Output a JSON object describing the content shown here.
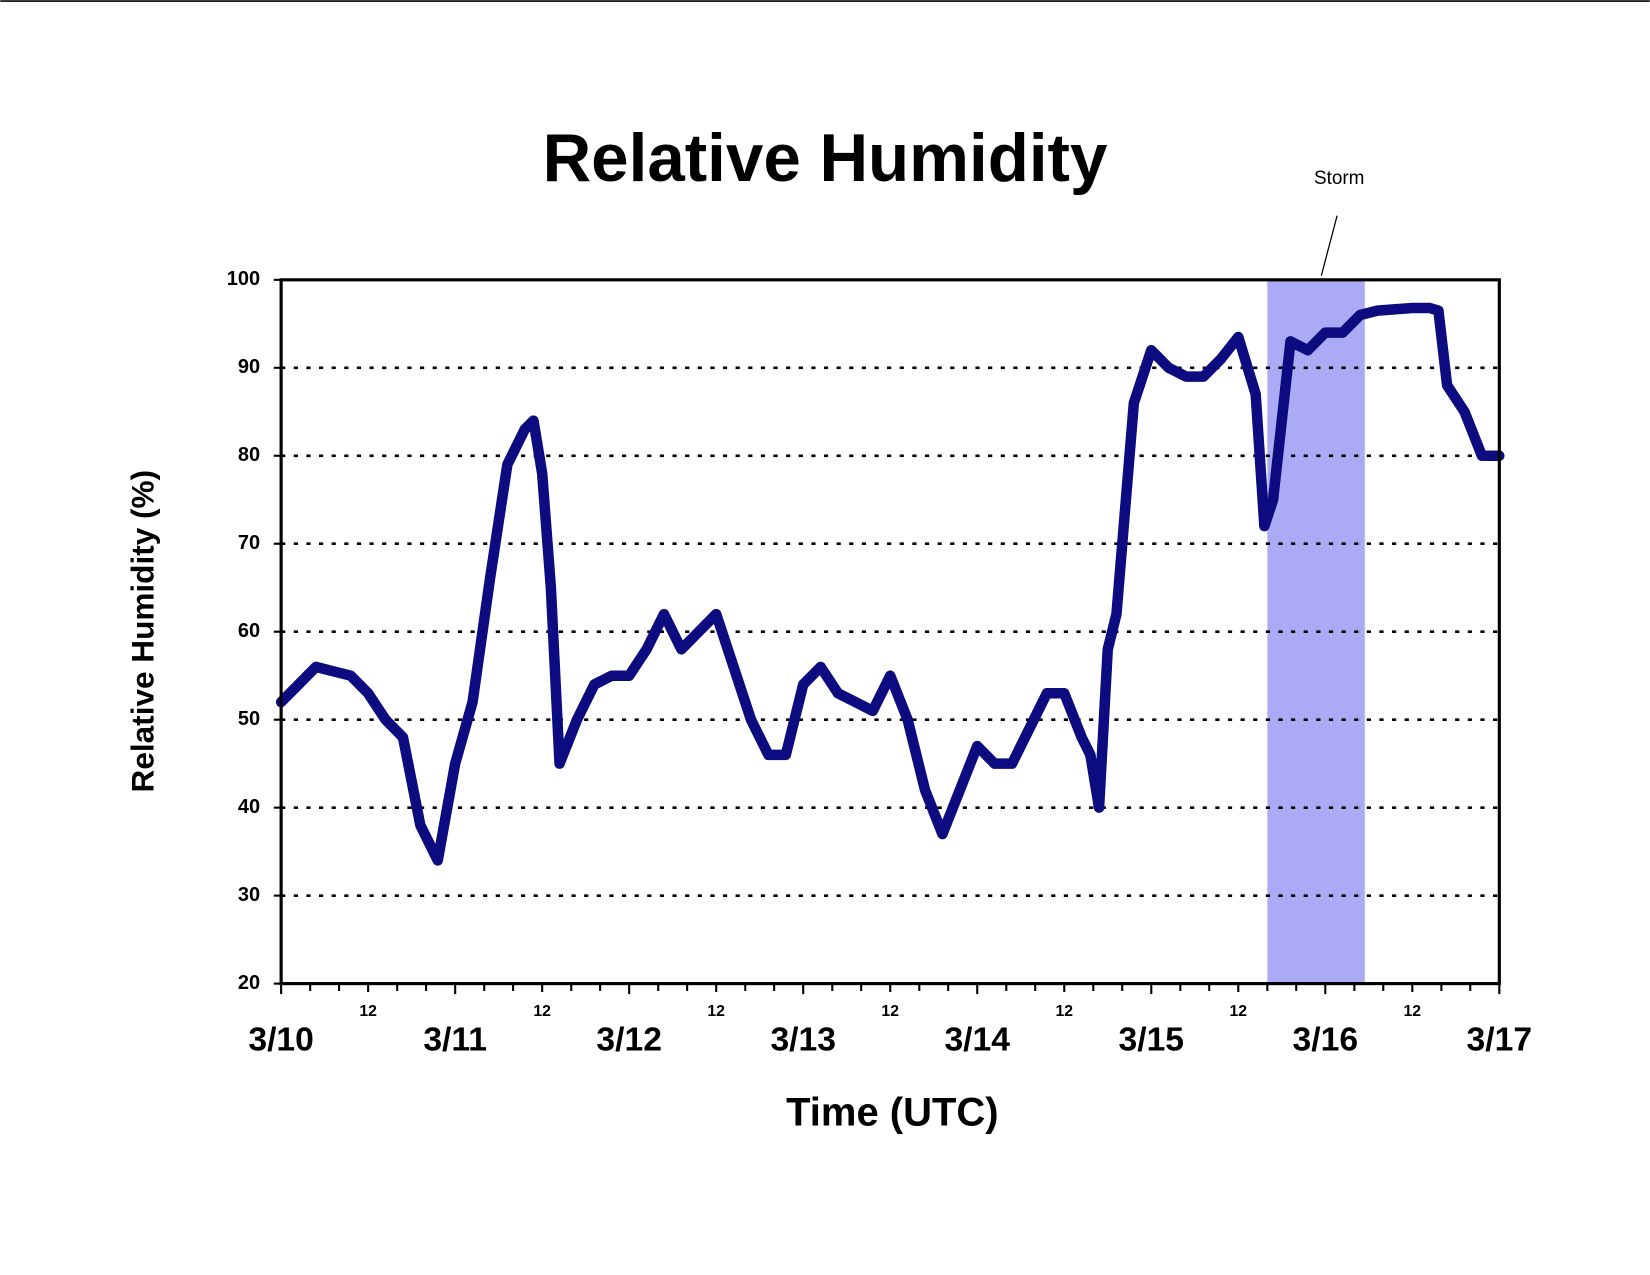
{
  "chart_data": {
    "type": "line",
    "title": "Relative Humidity",
    "x_label": "Time (UTC)",
    "y_label": "Relative Humidity (%)",
    "annotation": {
      "text": "Storm",
      "x": [
        5.667,
        6.227
      ],
      "color": "#aaaaf5"
    },
    "xlim": [
      0,
      7
    ],
    "xticks": [
      {
        "value": 0,
        "label": "3/10"
      },
      {
        "value": 0.5,
        "label": "12"
      },
      {
        "value": 1,
        "label": "3/11"
      },
      {
        "value": 1.5,
        "label": "12"
      },
      {
        "value": 2,
        "label": "3/12"
      },
      {
        "value": 2.5,
        "label": "12"
      },
      {
        "value": 3,
        "label": "3/13"
      },
      {
        "value": 3.5,
        "label": "12"
      },
      {
        "value": 4,
        "label": "3/14"
      },
      {
        "value": 4.5,
        "label": "12"
      },
      {
        "value": 5,
        "label": "3/15"
      },
      {
        "value": 5.5,
        "label": "12"
      },
      {
        "value": 6,
        "label": "3/16"
      },
      {
        "value": 6.5,
        "label": "12"
      },
      {
        "value": 7,
        "label": "3/17"
      }
    ],
    "x_minor_ticks": [
      0.167,
      0.333,
      0.667,
      0.833,
      1.167,
      1.333,
      1.667,
      1.833,
      2.167,
      2.333,
      2.667,
      2.833,
      3.167,
      3.333,
      3.667,
      3.833,
      4.167,
      4.333,
      4.667,
      4.833,
      5.167,
      5.333,
      5.667,
      5.833,
      6.167,
      6.333,
      6.667,
      6.833
    ],
    "ylim": [
      20,
      100
    ],
    "yticks": [
      20,
      30,
      40,
      50,
      60,
      70,
      80,
      90,
      100
    ],
    "grid": true,
    "series": [
      {
        "name": "Relative Humidity",
        "color": "#0c0c80",
        "x": [
          0,
          0.1,
          0.2,
          0.3,
          0.4,
          0.5,
          0.6,
          0.7,
          0.8,
          0.9,
          1.0,
          1.1,
          1.2,
          1.3,
          1.4,
          1.45,
          1.5,
          1.55,
          1.6,
          1.7,
          1.8,
          1.9,
          2.0,
          2.1,
          2.2,
          2.3,
          2.4,
          2.5,
          2.6,
          2.7,
          2.8,
          2.9,
          3.0,
          3.1,
          3.2,
          3.3,
          3.4,
          3.5,
          3.6,
          3.7,
          3.8,
          3.9,
          4.0,
          4.1,
          4.2,
          4.3,
          4.4,
          4.5,
          4.6,
          4.65,
          4.7,
          4.75,
          4.8,
          4.9,
          5.0,
          5.1,
          5.2,
          5.3,
          5.4,
          5.5,
          5.6,
          5.65,
          5.7,
          5.8,
          5.9,
          6.0,
          6.1,
          6.2,
          6.3,
          6.5,
          6.6,
          6.65,
          6.7,
          6.8,
          6.9,
          7.0
        ],
        "values": [
          52,
          54,
          56,
          55.5,
          55,
          53,
          50,
          48,
          38,
          34,
          45,
          52,
          66,
          79,
          83,
          84,
          78,
          65,
          45,
          50,
          54,
          55,
          55,
          58,
          62,
          58,
          60,
          62,
          56,
          50,
          46,
          46,
          54,
          56,
          53,
          52,
          51,
          55,
          50,
          42,
          37,
          42,
          47,
          45,
          45,
          49,
          53,
          53,
          48,
          46,
          40,
          58,
          62,
          86,
          92,
          90,
          89,
          89,
          91,
          93.5,
          87,
          72,
          75,
          93,
          92,
          94,
          94,
          96,
          96.5,
          96.8,
          96.8,
          96.5,
          88,
          85,
          80,
          80
        ]
      }
    ]
  }
}
